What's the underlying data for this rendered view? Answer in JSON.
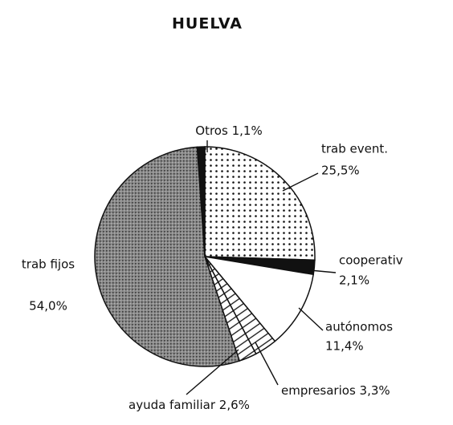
{
  "chart_data": {
    "type": "pie",
    "title": "HUELVA",
    "categories": [
      "trab event.",
      "cooperativ",
      "autónomos",
      "empresarios",
      "ayuda familiar",
      "trab fijos",
      "Otros"
    ],
    "values": [
      25.5,
      2.1,
      11.4,
      3.3,
      2.6,
      54.0,
      1.1
    ],
    "value_labels": [
      "25,5%",
      "2,1%",
      "11,4%",
      "3,3%",
      "2,6%",
      "54,0%",
      "1,1%"
    ],
    "colors": [
      "#ffffff",
      "#111111",
      "#ffffff",
      "#ffffff",
      "#ffffff",
      "#777777",
      "#111111"
    ],
    "patterns": [
      "dots",
      "solid",
      "solid",
      "hatch",
      "hatch",
      "stipple",
      "solid"
    ]
  }
}
